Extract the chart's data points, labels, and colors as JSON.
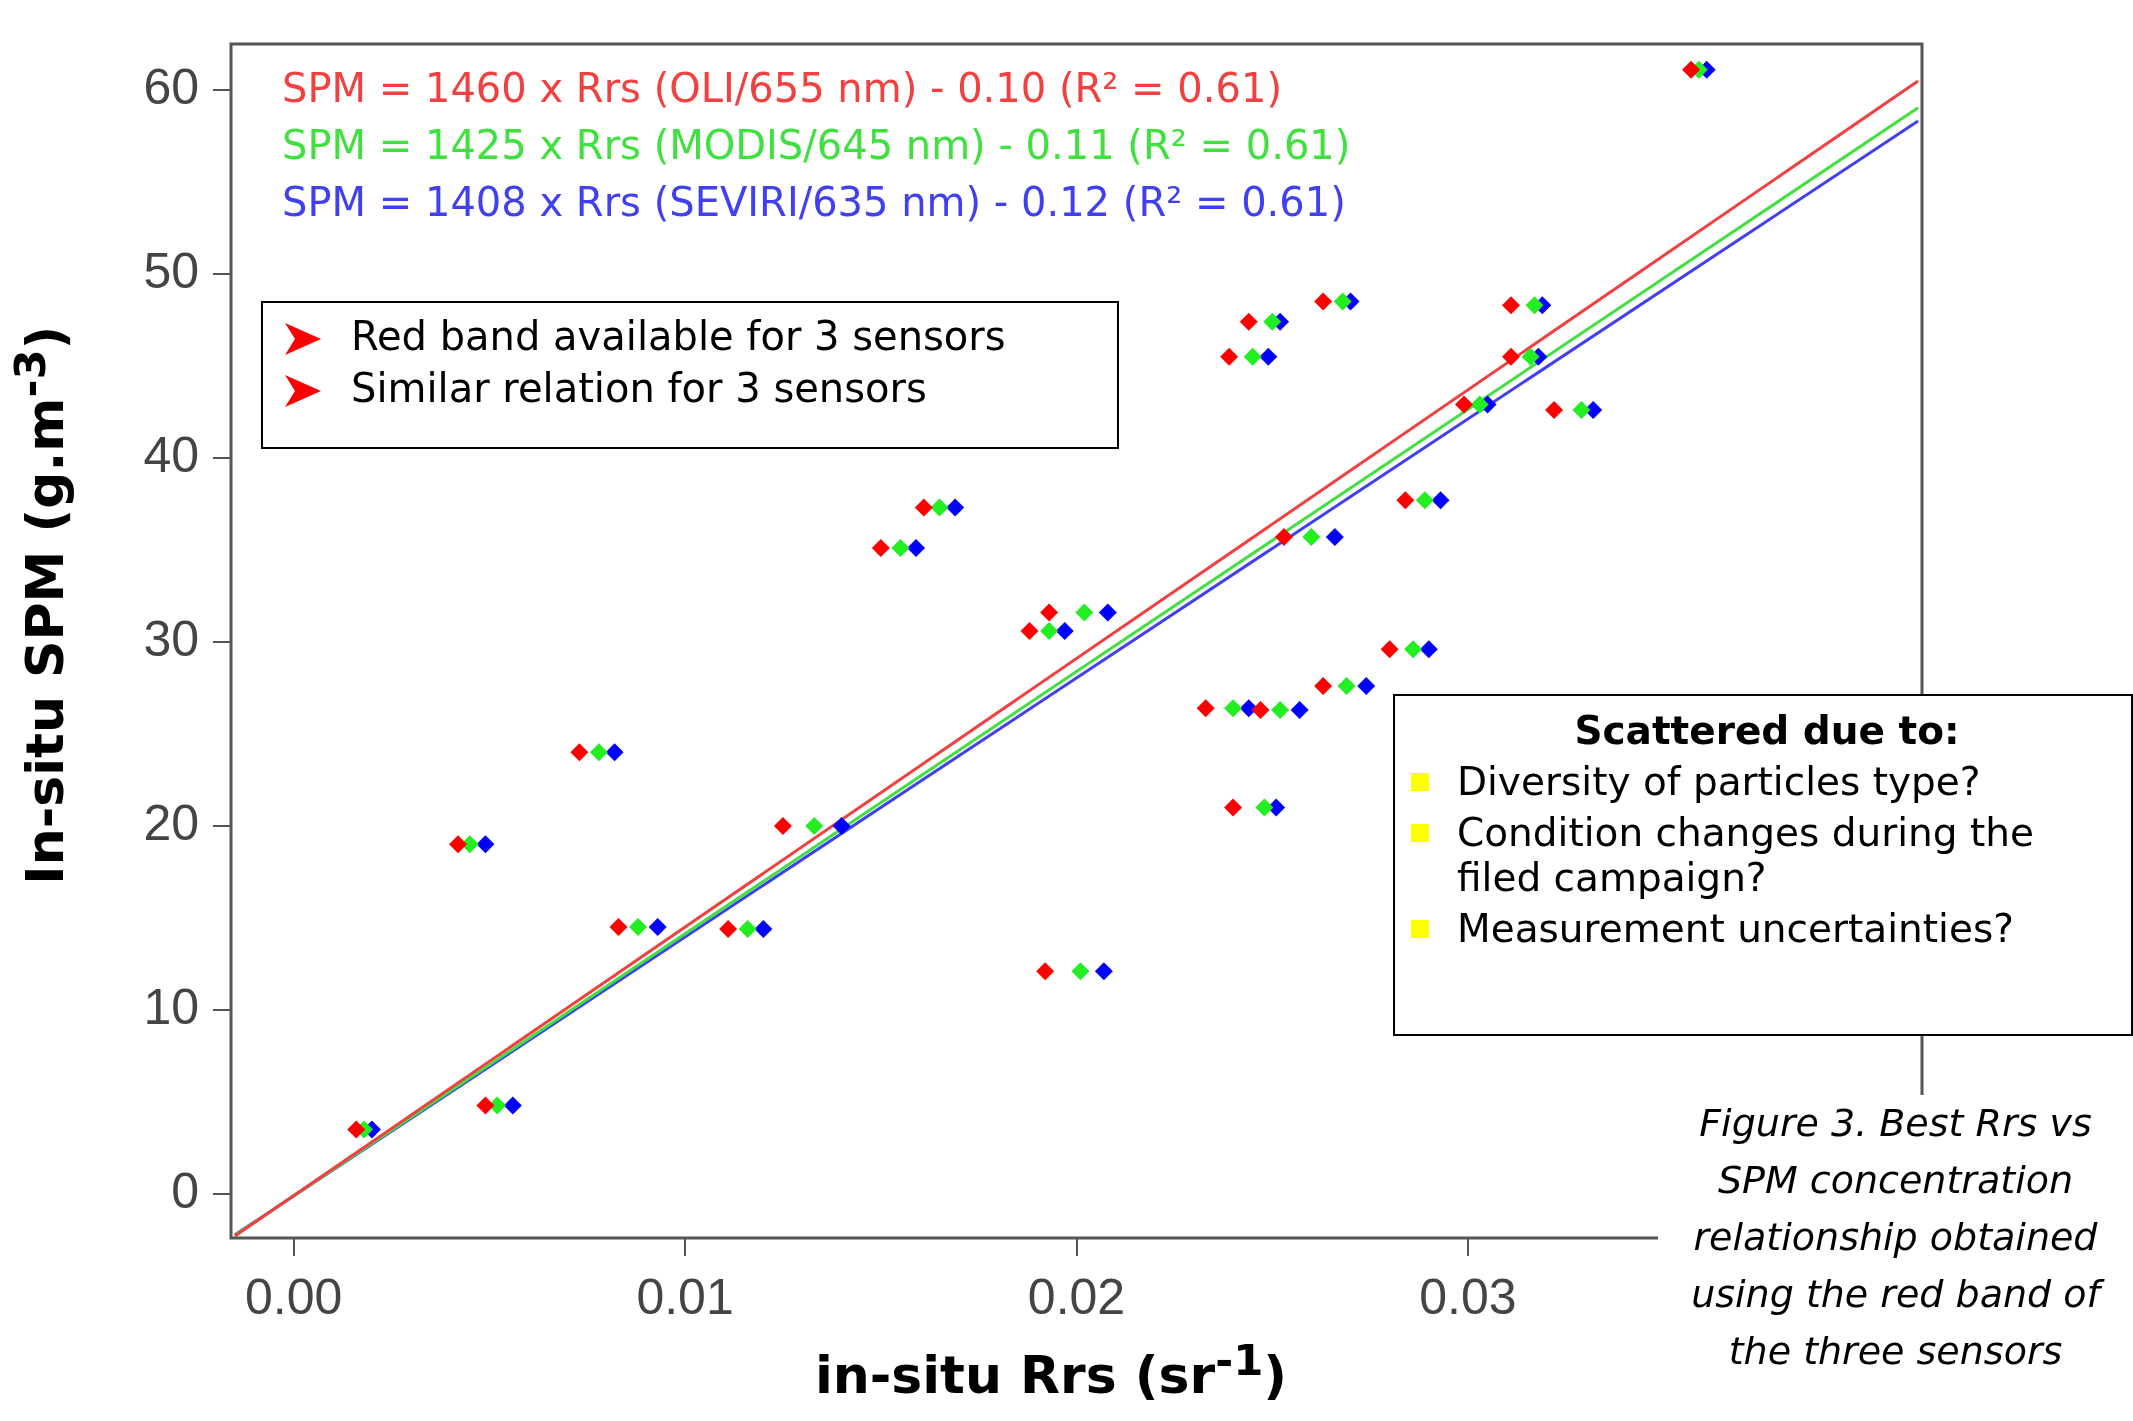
{
  "chart_data": {
    "type": "scatter",
    "marker": "diamond",
    "legend": "top left",
    "grid": false,
    "xlabel": "in-situ Rrs (sr$^{-1}$)",
    "ylabel": "In-situ SPM (g.m$^{-3}$)",
    "xlim": [
      -0.0016,
      0.0416
    ],
    "ylim": [
      -2.4,
      62.5
    ],
    "xticks": [
      {
        "value": 0,
        "label": "0.00"
      },
      0.01,
      0.02,
      0.03
    ],
    "yticks": [
      0,
      10,
      20,
      30,
      40,
      50,
      60
    ],
    "annotations": [
      "Red band available for 3 sensors",
      "Similar relation for 3 sensors",
      "Scattered due to:",
      "Diversity of particles type?",
      "Condition changes during the filed campaign?",
      "Measurement uncertainties?",
      "Figure 3. Best Rrs vs SPM concentration relationship obtained using the red band of the three sensors"
    ],
    "series": [
      {
        "color": "#ff0000",
        "x": [
          0.0016,
          0.0049,
          0.0042,
          0.0073,
          0.0083,
          0.0111,
          0.0125,
          0.015,
          0.0161,
          0.0192,
          0.0188,
          0.0193,
          0.0233,
          0.0247,
          0.024,
          0.0239,
          0.0244,
          0.0263,
          0.0253,
          0.0263,
          0.028,
          0.0284,
          0.0299,
          0.0311,
          0.0311,
          0.0322,
          0.0357
        ],
        "values": [
          3.5,
          4.8,
          19,
          24,
          14.5,
          14.4,
          20,
          35.1,
          37.3,
          12.1,
          30.6,
          31.6,
          26.4,
          26.3,
          21,
          45.5,
          47.4,
          48.5,
          35.7,
          27.6,
          29.6,
          37.7,
          42.9,
          45.5,
          48.3,
          42.6,
          61.1
        ]
      },
      {
        "color": "#22ee22",
        "x": [
          0.0018,
          0.0052,
          0.0045,
          0.0078,
          0.0088,
          0.0116,
          0.0133,
          0.0155,
          0.0165,
          0.0201,
          0.0193,
          0.0202,
          0.024,
          0.0252,
          0.0248,
          0.0245,
          0.025,
          0.0268,
          0.026,
          0.0269,
          0.0286,
          0.0289,
          0.0303,
          0.0316,
          0.0317,
          0.0329,
          0.0359
        ],
        "values": [
          3.5,
          4.8,
          19,
          24,
          14.5,
          14.4,
          20,
          35.1,
          37.3,
          12.1,
          30.6,
          31.6,
          26.4,
          26.3,
          21,
          45.5,
          47.4,
          48.5,
          35.7,
          27.6,
          29.6,
          37.7,
          42.9,
          45.5,
          48.3,
          42.6,
          61.1
        ]
      },
      {
        "color": "#0000ff",
        "x": [
          0.002,
          0.0056,
          0.0049,
          0.0082,
          0.0093,
          0.012,
          0.014,
          0.0159,
          0.0169,
          0.0207,
          0.0197,
          0.0208,
          0.0244,
          0.0257,
          0.0251,
          0.0249,
          0.0252,
          0.027,
          0.0266,
          0.0274,
          0.029,
          0.0293,
          0.0305,
          0.0318,
          0.0319,
          0.0332,
          0.0361
        ],
        "values": [
          3.5,
          4.8,
          19,
          24,
          14.5,
          14.4,
          20,
          35.1,
          37.3,
          12.1,
          30.6,
          31.6,
          26.4,
          26.3,
          21,
          45.5,
          47.4,
          48.5,
          35.7,
          27.6,
          29.6,
          37.7,
          42.9,
          45.5,
          48.3,
          42.6,
          61.1
        ]
      },
      {
        "type": "line",
        "marker": "none",
        "name": "SPM = 1460 x Rrs (OLI/655 nm) - 0.10 (R² = 0.61)",
        "color": "#f04040",
        "x": [
          -0.0015,
          0.0415
        ],
        "values": [
          -2.29,
          60.49
        ]
      },
      {
        "type": "line",
        "marker": "none",
        "name": "SPM = 1425 x Rrs (MODIS/645 nm) - 0.11 (R² = 0.61)",
        "color": "#40e040",
        "x": [
          -0.0015,
          0.0415
        ],
        "values": [
          -2.25,
          59.03
        ]
      },
      {
        "type": "line",
        "marker": "none",
        "name": "SPM = 1408 x Rrs (SEVIRI/635 nm) - 0.12 (R² = 0.61)",
        "color": "#4040f0",
        "x": [
          -0.0015,
          0.0415
        ],
        "values": [
          -2.23,
          58.31
        ]
      }
    ]
  }
}
